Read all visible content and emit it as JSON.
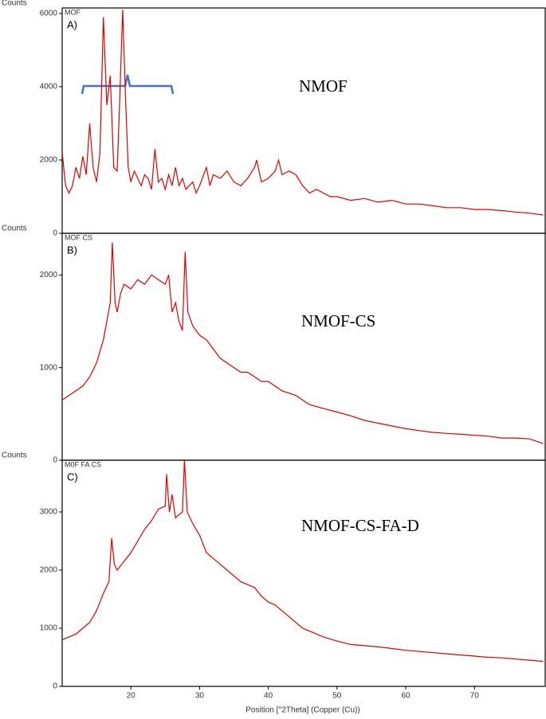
{
  "chart_data": [
    {
      "type": "line",
      "title": "MOF",
      "panel": "A)",
      "label": "NMOF",
      "ylabel": "Counts",
      "color": "#e00000",
      "x": [
        10,
        10.5,
        11,
        11.5,
        12,
        12.5,
        13,
        13.5,
        14,
        14.5,
        15,
        15.5,
        16,
        16.5,
        17,
        17.5,
        18,
        18.3,
        18.8,
        19.2,
        19.6,
        20,
        20.5,
        21,
        21.5,
        22,
        22.5,
        23,
        23.5,
        24,
        24.5,
        25,
        25.5,
        26,
        26.5,
        27,
        27.5,
        28,
        29,
        29.5,
        30,
        31,
        31.5,
        32,
        33,
        34,
        35,
        36,
        37,
        38,
        38.3,
        39,
        40,
        41,
        41.5,
        42,
        43,
        44,
        45,
        46,
        47,
        48,
        49,
        50,
        52,
        54,
        56,
        58,
        60,
        62,
        64,
        66,
        68,
        70,
        72,
        74,
        76,
        78,
        80
      ],
      "values": [
        2200,
        1300,
        1100,
        1300,
        1800,
        1500,
        2100,
        1600,
        3000,
        1800,
        1400,
        2200,
        5900,
        3500,
        4300,
        1800,
        1700,
        3200,
        6100,
        3800,
        1800,
        1400,
        1700,
        1500,
        1300,
        1600,
        1500,
        1200,
        2300,
        1400,
        1500,
        1200,
        1600,
        1300,
        1800,
        1300,
        1500,
        1200,
        1400,
        1100,
        1300,
        1800,
        1300,
        1600,
        1500,
        1700,
        1400,
        1300,
        1500,
        1800,
        2000,
        1400,
        1500,
        1700,
        2000,
        1600,
        1700,
        1600,
        1300,
        1100,
        1200,
        1100,
        1000,
        1000,
        900,
        950,
        850,
        900,
        800,
        800,
        750,
        700,
        700,
        650,
        650,
        620,
        580,
        550,
        500
      ],
      "xlim": [
        10,
        80.3
      ],
      "ylim": [
        0,
        6150
      ],
      "yticks": [
        0,
        2000,
        4000,
        6000
      ]
    },
    {
      "type": "line",
      "title": "MOF  CS",
      "panel": "B)",
      "label": "NMOF-CS",
      "ylabel": "Counts",
      "color": "#e00000",
      "x": [
        10,
        11,
        12,
        13,
        14,
        15,
        16,
        16.5,
        17,
        17.3,
        17.7,
        18,
        18.5,
        19,
        20,
        21,
        22,
        23,
        24,
        25,
        25.5,
        26,
        26.5,
        27,
        27.5,
        27.9,
        28.3,
        29,
        30,
        31,
        32,
        33,
        34,
        35,
        36,
        37,
        38,
        39,
        40,
        42,
        44,
        46,
        48,
        50,
        52,
        54,
        56,
        58,
        60,
        62,
        64,
        66,
        68,
        70,
        72,
        74,
        76,
        78,
        80
      ],
      "values": [
        650,
        700,
        750,
        800,
        900,
        1050,
        1300,
        1500,
        1700,
        2350,
        1700,
        1600,
        1800,
        1900,
        1850,
        1950,
        1900,
        2000,
        1950,
        1900,
        2000,
        1600,
        1700,
        1500,
        1400,
        2250,
        1600,
        1450,
        1350,
        1300,
        1200,
        1100,
        1050,
        1000,
        950,
        950,
        900,
        850,
        850,
        750,
        700,
        600,
        560,
        520,
        480,
        430,
        400,
        370,
        340,
        320,
        300,
        290,
        280,
        270,
        260,
        240,
        240,
        230,
        180
      ],
      "xlim": [
        10,
        80.3
      ],
      "ylim": [
        0,
        2450
      ],
      "yticks": [
        0,
        1000,
        2000
      ]
    },
    {
      "type": "line",
      "title": "M0F FA CS",
      "panel": "C)",
      "label": "NMOF-CS-FA-D",
      "ylabel": "Counts",
      "color": "#e00000",
      "xlabel": "Position [°2Theta] (Copper (Cu))",
      "x": [
        10,
        11,
        12,
        13,
        14,
        15,
        16,
        16.8,
        17.2,
        17.6,
        18,
        19,
        20,
        21,
        22,
        23,
        24,
        25,
        25.2,
        25.6,
        26,
        26.5,
        27,
        27.5,
        27.8,
        28.2,
        29,
        30,
        31,
        32,
        33,
        34,
        35,
        36,
        37,
        38,
        39,
        40,
        41,
        42,
        43,
        44,
        45,
        46,
        48,
        50,
        52,
        54,
        56,
        58,
        60,
        62,
        64,
        66,
        68,
        70,
        72,
        74,
        76,
        78,
        80
      ],
      "values": [
        800,
        850,
        900,
        1000,
        1100,
        1300,
        1600,
        1800,
        2550,
        2100,
        2000,
        2150,
        2300,
        2500,
        2700,
        2850,
        3050,
        3100,
        3650,
        3000,
        3300,
        2900,
        2950,
        3000,
        3900,
        3000,
        2800,
        2600,
        2300,
        2200,
        2100,
        2000,
        1900,
        1800,
        1750,
        1700,
        1550,
        1450,
        1400,
        1300,
        1200,
        1100,
        1000,
        950,
        850,
        780,
        720,
        700,
        680,
        650,
        620,
        600,
        580,
        560,
        540,
        520,
        500,
        490,
        470,
        450,
        430
      ],
      "xlim": [
        10,
        80.3
      ],
      "ylim": [
        0,
        3890
      ],
      "yticks": [
        0,
        1000,
        2000,
        3000
      ],
      "xticks": [
        20,
        30,
        40,
        50,
        60,
        70
      ]
    }
  ]
}
